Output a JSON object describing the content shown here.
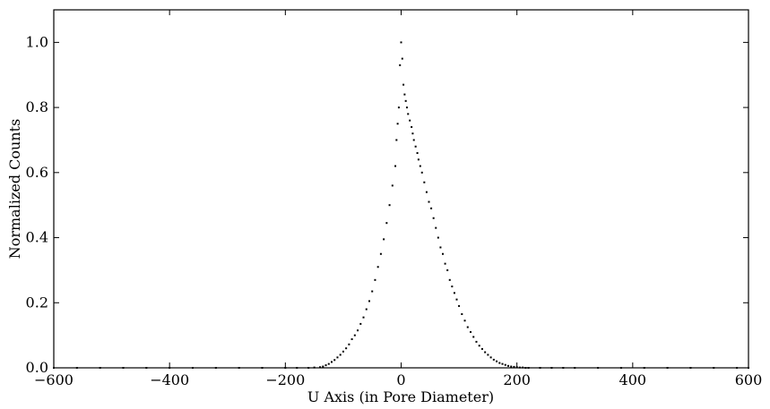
{
  "chart_data": {
    "type": "scatter",
    "title": "",
    "xlabel": "U Axis (in Pore Diameter)",
    "ylabel": "Normalized Counts",
    "xlim": [
      -600,
      600
    ],
    "ylim": [
      0,
      1.1
    ],
    "xticks": [
      -600,
      -400,
      -200,
      0,
      200,
      400,
      600
    ],
    "xtick_labels": [
      "−600",
      "−400",
      "−200",
      "0",
      "200",
      "400",
      "600"
    ],
    "yticks": [
      0.0,
      0.2,
      0.4,
      0.6,
      0.8,
      1.0
    ],
    "ytick_labels": [
      "0.0",
      "0.2",
      "0.4",
      "0.6",
      "0.8",
      "1.0"
    ],
    "grid": false,
    "marker_color": "#000000",
    "series": [
      {
        "x": [
          -600,
          -560,
          -520,
          -480,
          -440,
          -400,
          -360,
          -320,
          -280,
          -240,
          -200,
          -180,
          -160,
          -150,
          -140,
          -135,
          -130,
          -125,
          -120,
          -115,
          -110,
          -105,
          -100,
          -95,
          -90,
          -85,
          -80,
          -75,
          -70,
          -65,
          -60,
          -55,
          -50,
          -45,
          -40,
          -35,
          -30,
          -25,
          -20,
          -15,
          -10,
          -8,
          -6,
          -4,
          -2,
          0,
          2,
          4,
          6,
          8,
          10,
          12,
          15,
          18,
          20,
          22,
          25,
          28,
          30,
          33,
          36,
          40,
          44,
          48,
          52,
          56,
          60,
          64,
          68,
          72,
          76,
          80,
          84,
          88,
          92,
          96,
          100,
          105,
          110,
          115,
          120,
          125,
          130,
          135,
          140,
          145,
          150,
          155,
          160,
          165,
          170,
          175,
          180,
          185,
          190,
          195,
          200,
          205,
          210,
          215,
          220,
          240,
          260,
          280,
          300,
          340,
          380,
          420,
          460,
          500,
          540,
          580,
          600
        ],
        "y": [
          0.0,
          0.0,
          0.0,
          0.0,
          0.0,
          0.0,
          0.0,
          0.0,
          0.0,
          0.0,
          0.0,
          0.0,
          0.0,
          0.001,
          0.002,
          0.004,
          0.008,
          0.012,
          0.018,
          0.024,
          0.032,
          0.04,
          0.05,
          0.06,
          0.072,
          0.088,
          0.1,
          0.115,
          0.135,
          0.155,
          0.18,
          0.205,
          0.235,
          0.27,
          0.31,
          0.35,
          0.395,
          0.445,
          0.5,
          0.56,
          0.62,
          0.7,
          0.75,
          0.8,
          0.93,
          1.0,
          0.95,
          0.87,
          0.84,
          0.82,
          0.8,
          0.78,
          0.76,
          0.74,
          0.72,
          0.7,
          0.68,
          0.66,
          0.64,
          0.62,
          0.6,
          0.57,
          0.54,
          0.51,
          0.49,
          0.46,
          0.43,
          0.4,
          0.37,
          0.35,
          0.32,
          0.3,
          0.27,
          0.25,
          0.23,
          0.21,
          0.19,
          0.165,
          0.145,
          0.125,
          0.11,
          0.095,
          0.08,
          0.068,
          0.058,
          0.048,
          0.04,
          0.032,
          0.025,
          0.02,
          0.015,
          0.012,
          0.009,
          0.006,
          0.004,
          0.003,
          0.002,
          0.001,
          0.001,
          0.0,
          0.0,
          0.0,
          0.0,
          0.0,
          0.0,
          0.0,
          0.0,
          0.0,
          0.0,
          0.0,
          0.0,
          0.0,
          0.0
        ]
      }
    ]
  }
}
